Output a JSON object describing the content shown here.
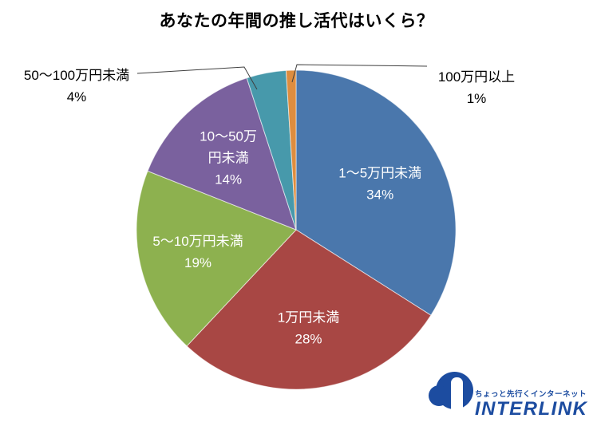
{
  "page": {
    "background": "#ffffff"
  },
  "chart_data": {
    "type": "pie",
    "title": "あなたの年間の推し活代はいくら？",
    "direction": "clockwise",
    "start_angle_deg": 0,
    "legend_position": "none",
    "grid": false,
    "inside_label_color": "#ffffff",
    "outside_label_color": "#000000",
    "leader_line_color": "#3f3f3f",
    "categories": [
      "1～5万円未満",
      "1万円未満",
      "5～10万円未満",
      "10～50万円未満",
      "50～100万円未満",
      "100万円以上"
    ],
    "values": [
      34,
      28,
      19,
      14,
      4,
      1
    ],
    "segments": [
      {
        "label": "1～5万円未満",
        "value": 34,
        "pct_label": "34%",
        "color": "#4A77AC",
        "label_placement": "inside",
        "label_lines": [
          "1～5万円未満"
        ]
      },
      {
        "label": "1万円未満",
        "value": 28,
        "pct_label": "28%",
        "color": "#A84744",
        "label_placement": "inside",
        "label_lines": [
          "1万円未満"
        ]
      },
      {
        "label": "5～10万円未満",
        "value": 19,
        "pct_label": "19%",
        "color": "#8DB14F",
        "label_placement": "inside",
        "label_lines": [
          "5～10万円未満"
        ]
      },
      {
        "label": "10～50万円未満",
        "value": 14,
        "pct_label": "14%",
        "color": "#7A619E",
        "label_placement": "inside",
        "label_lines": [
          "10～50万",
          "円未満"
        ]
      },
      {
        "label": "50～100万円未満",
        "value": 4,
        "pct_label": "4%",
        "color": "#4799AB",
        "label_placement": "outside-left"
      },
      {
        "label": "100万円以上",
        "value": 1,
        "pct_label": "1%",
        "color": "#DE8D3F",
        "label_placement": "outside-right"
      }
    ]
  },
  "logo": {
    "tagline": "ちょっと先行くインターネット",
    "brand": "INTERLINK",
    "color": "#1C4CA0"
  }
}
